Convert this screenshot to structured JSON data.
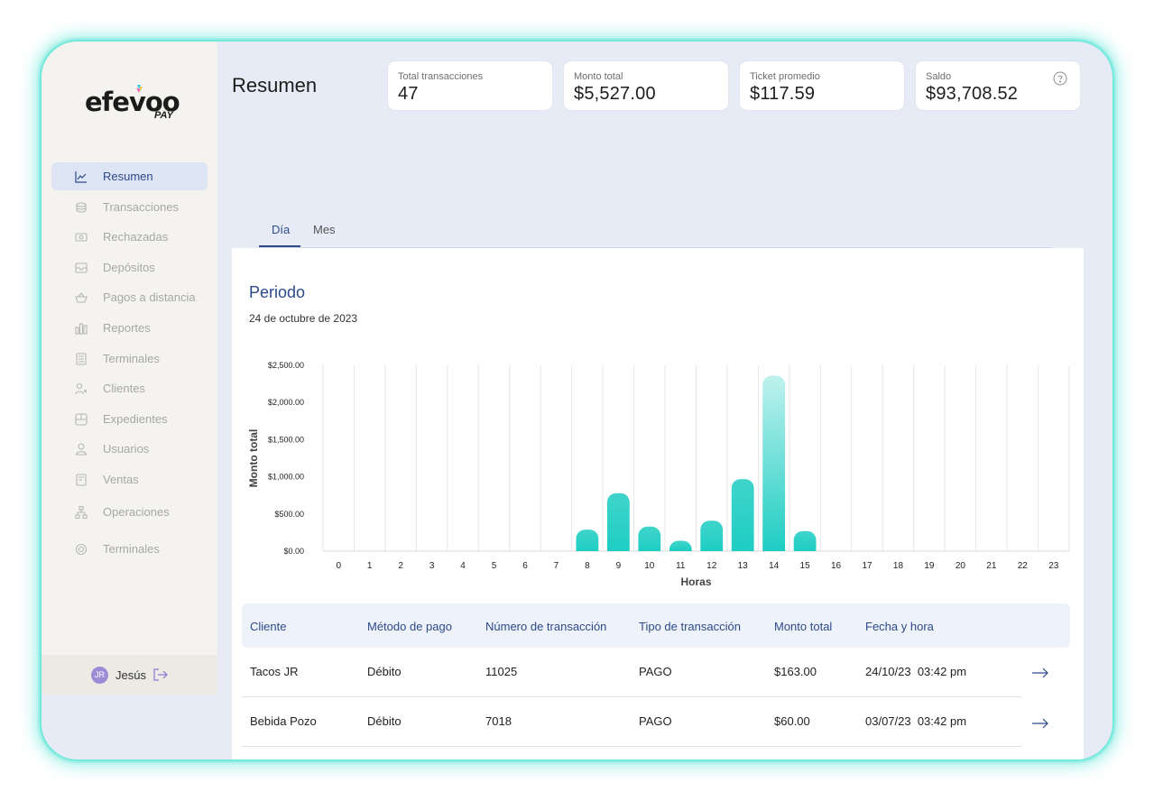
{
  "brand": {
    "name": "efevoo",
    "sub": "PAY"
  },
  "sidebar": {
    "items": [
      {
        "label": "Resumen",
        "icon": "chart-icon",
        "active": true
      },
      {
        "label": "Transacciones",
        "icon": "coins-icon"
      },
      {
        "label": "Rechazadas",
        "icon": "cash-icon"
      },
      {
        "label": "Depósitos",
        "icon": "inbox-icon"
      },
      {
        "label": "Pagos a distancia",
        "icon": "basket-icon"
      },
      {
        "label": "Reportes",
        "icon": "report-icon"
      },
      {
        "label": "Terminales",
        "icon": "terminal-icon"
      },
      {
        "label": "Clientes",
        "icon": "clients-icon"
      },
      {
        "label": "Expedientes",
        "icon": "folder-icon"
      },
      {
        "label": "Usuarios",
        "icon": "user-icon"
      },
      {
        "label": "Ventas",
        "icon": "receipt-icon"
      },
      {
        "label": "Operaciones",
        "icon": "hierarchy-icon"
      },
      {
        "label": "Terminales",
        "icon": "settings-icon"
      }
    ],
    "user": {
      "initials": "JR",
      "name": "Jesús"
    }
  },
  "header": {
    "title": "Resumen"
  },
  "cards": [
    {
      "label": "Total transacciones",
      "value": "47"
    },
    {
      "label": "Monto total",
      "value": "$5,527.00"
    },
    {
      "label": "Ticket promedio",
      "value": "$117.59"
    },
    {
      "label": "Saldo",
      "value": "$93,708.52"
    }
  ],
  "tabs": [
    {
      "label": "Día",
      "active": true
    },
    {
      "label": "Mes"
    }
  ],
  "period": {
    "title": "Periodo",
    "date": "24 de octubre de 2023"
  },
  "colors": {
    "accent": "#2d4a8a",
    "bar": "#1ecdc2",
    "bar_top": "#bff1ee"
  },
  "chart_data": {
    "type": "bar",
    "xlabel": "Horas",
    "ylabel": "Monto total",
    "ylim": [
      0,
      2500
    ],
    "yticks": [
      "$0.00",
      "$500.00",
      "$1,000.00",
      "$1,500.00",
      "$2,000.00",
      "$2,500.00"
    ],
    "categories": [
      "0",
      "1",
      "2",
      "3",
      "4",
      "5",
      "6",
      "7",
      "8",
      "9",
      "10",
      "11",
      "12",
      "13",
      "14",
      "15",
      "16",
      "17",
      "18",
      "19",
      "20",
      "21",
      "22",
      "23"
    ],
    "values": [
      0,
      0,
      0,
      0,
      0,
      0,
      0,
      0,
      290,
      780,
      330,
      140,
      410,
      970,
      2360,
      270,
      0,
      0,
      0,
      0,
      0,
      0,
      0,
      0
    ],
    "grid": "vertical",
    "highlight": 14
  },
  "table": {
    "columns": [
      "Cliente",
      "Método de pago",
      "Número de transacción",
      "Tipo de transacción",
      "Monto total",
      "Fecha y hora"
    ],
    "rows": [
      [
        "Tacos JR",
        "Débito",
        "11025",
        "PAGO",
        "$163.00",
        "24/10/23  03:42 pm"
      ],
      [
        "Bebida Pozo",
        "Débito",
        "7018",
        "PAGO",
        "$60.00",
        "03/07/23  03:42 pm"
      ]
    ]
  }
}
